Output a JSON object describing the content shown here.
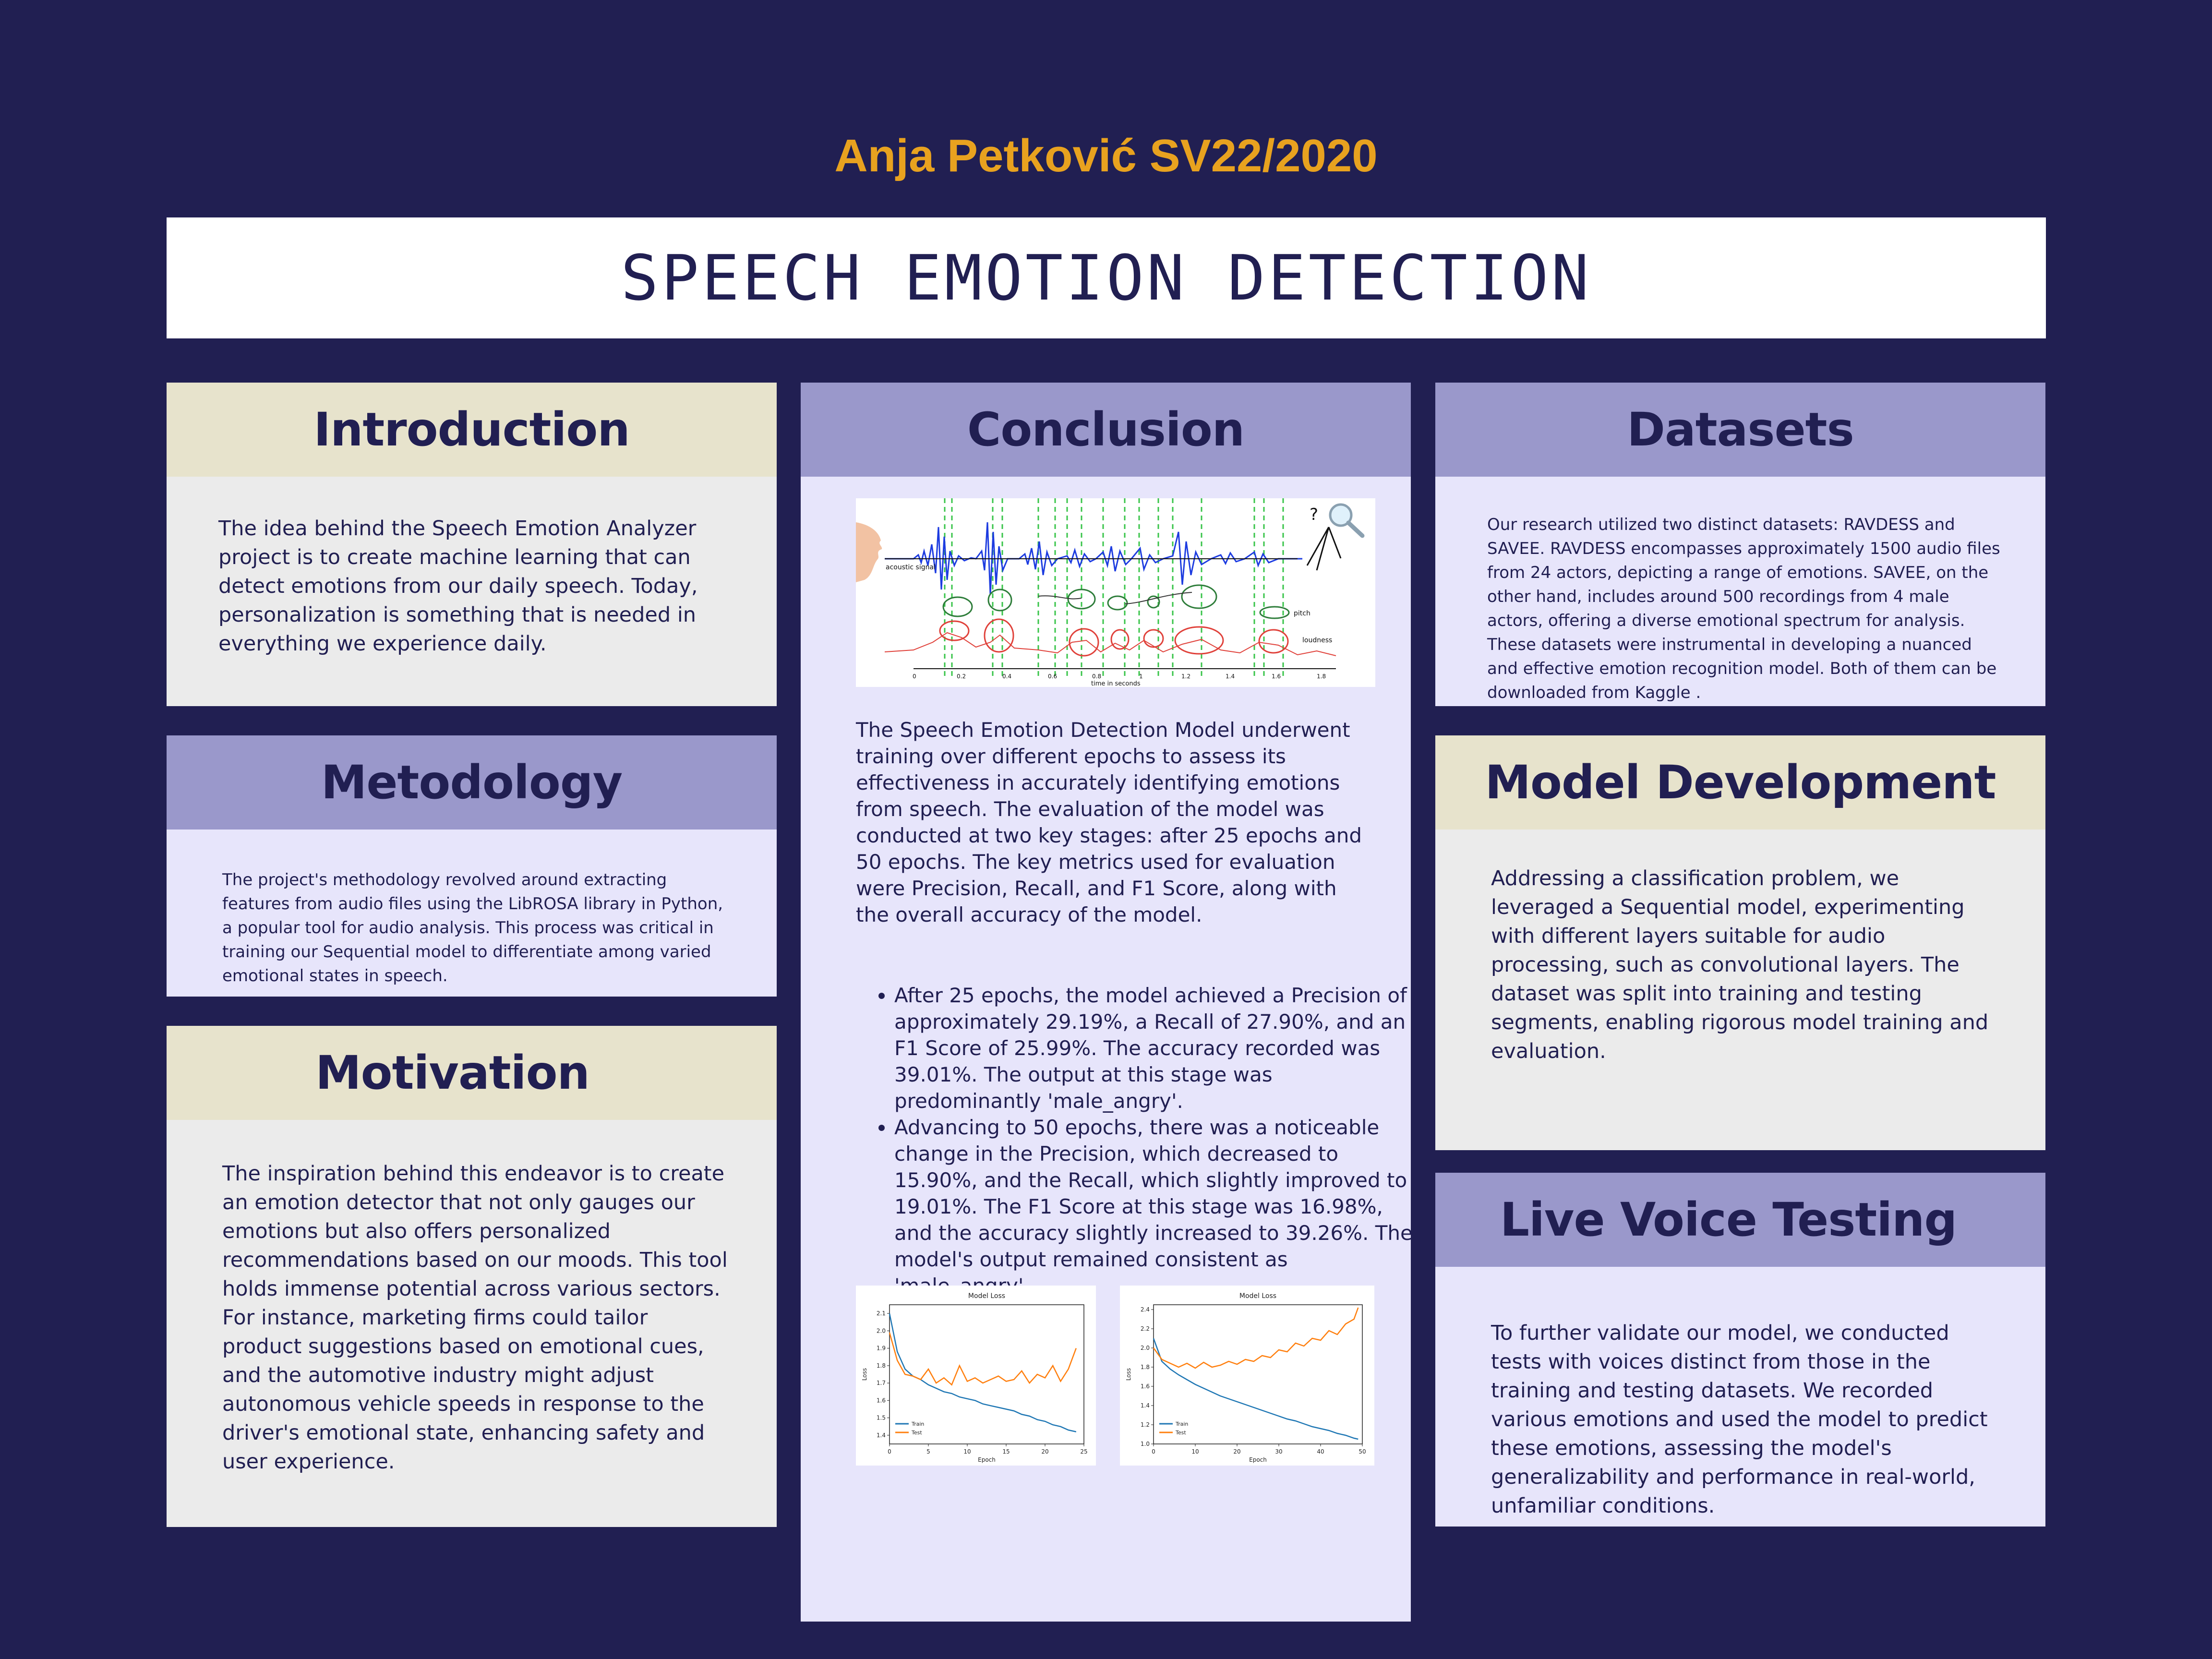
{
  "author": "Anja Petković SV22/2020",
  "title": "SPEECH EMOTION DETECTION",
  "introduction": {
    "heading": "Introduction",
    "text": "The idea behind the Speech Emotion Analyzer project is to create machine learning that can detect emotions from our daily speech. Today, personalization is something that is needed in everything we experience daily."
  },
  "methodology": {
    "heading": "Metodology",
    "text": "The project's methodology revolved around extracting features from audio files using the LibROSA library in Python, a popular tool for audio analysis. This process was critical in training our Sequential model to differentiate among varied emotional states in speech."
  },
  "motivation": {
    "heading": "Motivation",
    "text": "The inspiration behind this endeavor is to create an emotion detector that not only gauges our emotions but also offers personalized recommendations based on our moods. This tool holds immense potential across various sectors. For instance, marketing firms could tailor product suggestions based on emotional cues, and the automotive industry might adjust autonomous vehicle speeds in response to the driver's emotional state, enhancing safety and user experience."
  },
  "conclusion": {
    "heading": "Conclusion",
    "figure": {
      "label_signal": "acoustic signal",
      "label_pitch": "pitch",
      "label_loudness": "loudness",
      "xaxis": "time in seconds",
      "ticks": [
        "0",
        "0.2",
        "0.4",
        "0.6",
        "0.8",
        "1",
        "1.2",
        "1.4",
        "1.6",
        "1.8"
      ],
      "question": "?"
    },
    "paragraph": "The Speech Emotion Detection Model underwent training over different epochs to assess its effectiveness in accurately identifying emotions from speech. The evaluation of the model was conducted at two key stages: after 25 epochs and 50 epochs. The key metrics used for evaluation were Precision, Recall, and F1 Score, along with the overall accuracy of the model.",
    "bullets": [
      "After 25 epochs, the model achieved a Precision of approximately 29.19%, a Recall of 27.90%, and an F1 Score of 25.99%. The accuracy recorded was 39.01%. The output at this stage was predominantly 'male_angry'.",
      "Advancing to 50 epochs, there was a noticeable change in the Precision, which decreased to 15.90%, and the Recall, which slightly improved to 19.01%. The F1 Score at this stage was 16.98%, and the accuracy slightly increased to 39.26%. The model's output remained consistent as 'male_angry'."
    ]
  },
  "datasets": {
    "heading": "Datasets",
    "text": "Our research utilized two distinct datasets: RAVDESS and SAVEE. RAVDESS encompasses approximately 1500 audio files from 24 actors, depicting a range of emotions. SAVEE, on the other hand, includes around 500 recordings from 4 male actors, offering a diverse emotional spectrum for analysis. These datasets were instrumental in developing a nuanced and effective emotion recognition model. Both of them can be downloaded from Kaggle ."
  },
  "model_development": {
    "heading": "Model Development",
    "text": "Addressing a classification problem, we leveraged a Sequential model, experimenting with different layers suitable for audio processing, such as convolutional layers. The dataset was split into training and testing segments, enabling rigorous model training and evaluation."
  },
  "live_testing": {
    "heading": "Live Voice Testing",
    "text": "To further validate our model, we conducted tests with voices distinct from those in the training and testing datasets. We recorded various emotions and used the model to predict these emotions, assessing the model's generalizability and performance in real-world, unfamiliar conditions."
  },
  "chart_data": [
    {
      "type": "line",
      "title": "Model Loss",
      "xlabel": "Epoch",
      "ylabel": "Loss",
      "xlim": [
        0,
        25
      ],
      "ylim": [
        1.35,
        2.15
      ],
      "xticks": [
        "0",
        "5",
        "10",
        "15",
        "20",
        "25"
      ],
      "yticks": [
        "1.4",
        "1.5",
        "1.6",
        "1.7",
        "1.8",
        "1.9",
        "2.0",
        "2.1"
      ],
      "legend_position": "lower-left",
      "series": [
        {
          "name": "Train",
          "color": "#1f77b4",
          "x": [
            0,
            1,
            2,
            3,
            4,
            5,
            6,
            7,
            8,
            9,
            10,
            11,
            12,
            13,
            14,
            15,
            16,
            17,
            18,
            19,
            20,
            21,
            22,
            23,
            24
          ],
          "values": [
            2.1,
            1.88,
            1.78,
            1.74,
            1.72,
            1.69,
            1.67,
            1.65,
            1.64,
            1.62,
            1.61,
            1.6,
            1.58,
            1.57,
            1.56,
            1.55,
            1.54,
            1.52,
            1.51,
            1.49,
            1.48,
            1.46,
            1.45,
            1.43,
            1.42
          ]
        },
        {
          "name": "Test",
          "color": "#ff7f0e",
          "x": [
            0,
            1,
            2,
            3,
            4,
            5,
            6,
            7,
            8,
            9,
            10,
            11,
            12,
            13,
            14,
            15,
            16,
            17,
            18,
            19,
            20,
            21,
            22,
            23,
            24
          ],
          "values": [
            1.99,
            1.83,
            1.75,
            1.74,
            1.72,
            1.78,
            1.7,
            1.73,
            1.69,
            1.8,
            1.71,
            1.73,
            1.7,
            1.72,
            1.74,
            1.71,
            1.72,
            1.77,
            1.7,
            1.75,
            1.73,
            1.8,
            1.71,
            1.78,
            1.9
          ]
        }
      ]
    },
    {
      "type": "line",
      "title": "Model Loss",
      "xlabel": "Epoch",
      "ylabel": "Loss",
      "xlim": [
        0,
        50
      ],
      "ylim": [
        1.0,
        2.45
      ],
      "xticks": [
        "0",
        "10",
        "20",
        "30",
        "40",
        "50"
      ],
      "yticks": [
        "1.0",
        "1.2",
        "1.4",
        "1.6",
        "1.8",
        "2.0",
        "2.2",
        "2.4"
      ],
      "legend_position": "lower-left",
      "series": [
        {
          "name": "Train",
          "color": "#1f77b4",
          "x": [
            0,
            2,
            4,
            6,
            8,
            10,
            12,
            14,
            16,
            18,
            20,
            22,
            24,
            26,
            28,
            30,
            32,
            34,
            36,
            38,
            40,
            42,
            44,
            46,
            48,
            49
          ],
          "values": [
            2.1,
            1.86,
            1.78,
            1.72,
            1.67,
            1.62,
            1.58,
            1.54,
            1.5,
            1.47,
            1.44,
            1.41,
            1.38,
            1.35,
            1.32,
            1.29,
            1.26,
            1.24,
            1.21,
            1.18,
            1.16,
            1.14,
            1.11,
            1.09,
            1.06,
            1.05
          ]
        },
        {
          "name": "Test",
          "color": "#ff7f0e",
          "x": [
            0,
            2,
            4,
            6,
            8,
            10,
            12,
            14,
            16,
            18,
            20,
            22,
            24,
            26,
            28,
            30,
            32,
            34,
            36,
            38,
            40,
            42,
            44,
            46,
            48,
            49
          ],
          "values": [
            2.0,
            1.88,
            1.84,
            1.8,
            1.84,
            1.79,
            1.85,
            1.8,
            1.82,
            1.86,
            1.83,
            1.88,
            1.86,
            1.92,
            1.9,
            1.98,
            1.96,
            2.05,
            2.02,
            2.1,
            2.08,
            2.18,
            2.14,
            2.25,
            2.3,
            2.42
          ]
        }
      ]
    }
  ]
}
